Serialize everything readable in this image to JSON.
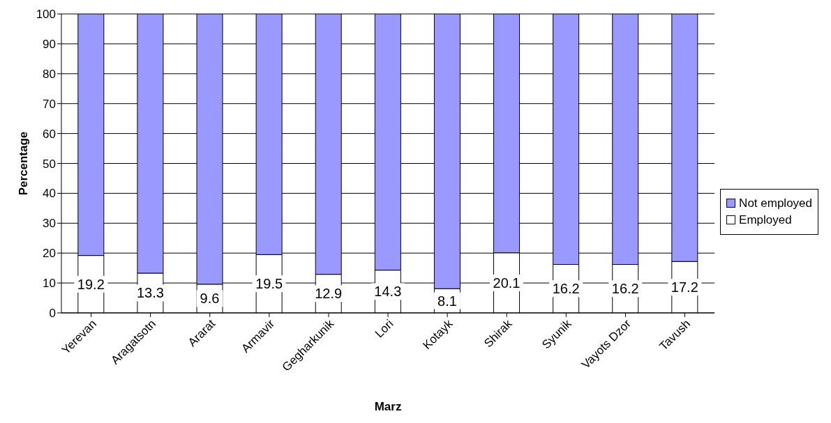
{
  "chart_data": {
    "type": "bar",
    "stacked": true,
    "xlabel": "Marz",
    "ylabel": "Percentage",
    "categories": [
      "Yerevan",
      "Aragatsotn",
      "Ararat",
      "Armavir",
      "Gegharkunik",
      "Lori",
      "Kotayk",
      "Shirak",
      "Syunik",
      "Vayots Dzor",
      "Tavush"
    ],
    "series": [
      {
        "name": "Employed",
        "color": "#ffffff",
        "values": [
          19.2,
          13.3,
          9.6,
          19.5,
          12.9,
          14.3,
          8.1,
          20.1,
          16.2,
          16.2,
          17.2
        ],
        "value_labels": [
          "19.2",
          "13.3",
          "9.6",
          "19.5",
          "12.9",
          "14.3",
          "8.1",
          "20.1",
          "16.2",
          "16.2",
          "17.2"
        ]
      },
      {
        "name": "Not employed",
        "color": "#9999ff",
        "values": [
          80.8,
          86.7,
          90.4,
          80.5,
          87.1,
          85.7,
          91.9,
          79.9,
          83.8,
          83.8,
          82.8
        ]
      }
    ],
    "ylim": [
      0,
      100
    ],
    "yticks": [
      0,
      10,
      20,
      30,
      40,
      50,
      60,
      70,
      80,
      90,
      100
    ],
    "grid": "y",
    "legend": "right"
  }
}
